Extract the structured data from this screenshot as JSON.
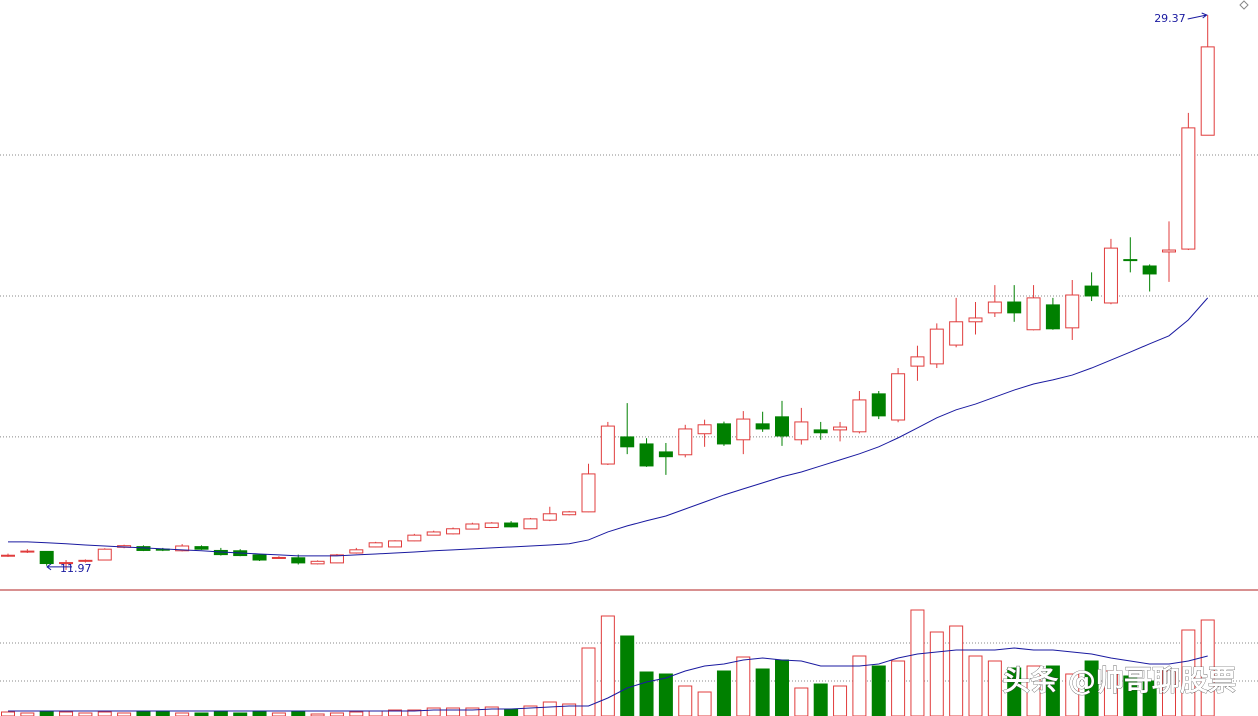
{
  "chart_data": {
    "type": "candlestick",
    "up_color": "#e03c3c",
    "down_color": "#008000",
    "ylim": [
      11.34,
      29.84
    ],
    "grid_lines": [
      16.14,
      20.56,
      24.98
    ],
    "open": [
      12.42,
      12.55,
      12.55,
      12.2,
      12.25,
      12.28,
      12.68,
      12.7,
      12.62,
      12.57,
      12.7,
      12.58,
      12.57,
      12.44,
      12.34,
      12.35,
      12.16,
      12.19,
      12.5,
      12.69,
      12.69,
      12.88,
      13.06,
      13.1,
      13.25,
      13.3,
      13.44,
      13.26,
      13.53,
      13.7,
      13.79,
      15.29,
      16.14,
      15.92,
      15.67,
      15.58,
      16.24,
      16.55,
      16.05,
      16.55,
      16.77,
      16.05,
      16.36,
      16.36,
      16.3,
      17.49,
      16.67,
      18.36,
      18.43,
      19.02,
      19.75,
      20.03,
      20.37,
      19.5,
      20.28,
      19.56,
      20.87,
      20.34,
      21.7,
      21.5,
      21.94,
      22.03,
      25.6
    ],
    "high": [
      12.48,
      12.62,
      12.56,
      12.28,
      12.3,
      12.65,
      12.76,
      12.74,
      12.66,
      12.78,
      12.74,
      12.66,
      12.62,
      12.48,
      12.4,
      12.45,
      12.27,
      12.47,
      12.66,
      12.85,
      12.9,
      13.1,
      13.2,
      13.3,
      13.45,
      13.47,
      13.5,
      13.6,
      13.95,
      13.82,
      15.3,
      16.61,
      17.2,
      16.1,
      15.95,
      16.52,
      16.68,
      16.62,
      16.95,
      16.93,
      17.27,
      17.05,
      16.61,
      16.61,
      17.58,
      17.58,
      18.3,
      19.0,
      19.7,
      20.5,
      20.37,
      20.9,
      20.9,
      20.9,
      20.5,
      21.06,
      21.3,
      22.35,
      22.4,
      21.55,
      22.9,
      26.3,
      29.37
    ],
    "low": [
      12.38,
      12.5,
      12.1,
      11.97,
      12.2,
      12.27,
      12.65,
      12.56,
      12.56,
      12.55,
      12.6,
      12.42,
      12.4,
      12.25,
      12.32,
      12.14,
      12.14,
      12.18,
      12.48,
      12.68,
      12.68,
      12.87,
      13.05,
      13.08,
      13.24,
      13.28,
      13.3,
      13.25,
      13.5,
      13.68,
      13.78,
      15.26,
      15.6,
      15.2,
      14.95,
      15.5,
      15.83,
      15.86,
      15.6,
      16.3,
      15.86,
      15.9,
      16.05,
      16.0,
      16.25,
      16.7,
      16.6,
      17.9,
      18.3,
      18.95,
      19.35,
      19.9,
      19.75,
      19.48,
      19.5,
      19.18,
      20.4,
      20.3,
      21.3,
      20.7,
      21.0,
      22.0,
      25.6
    ],
    "close": [
      12.43,
      12.56,
      12.17,
      12.2,
      12.27,
      12.62,
      12.73,
      12.58,
      12.6,
      12.72,
      12.62,
      12.45,
      12.42,
      12.28,
      12.36,
      12.19,
      12.24,
      12.44,
      12.6,
      12.82,
      12.88,
      13.06,
      13.16,
      13.26,
      13.41,
      13.44,
      13.32,
      13.57,
      13.73,
      13.79,
      14.98,
      16.48,
      15.83,
      15.23,
      15.52,
      16.39,
      16.52,
      15.92,
      16.7,
      16.39,
      16.17,
      16.61,
      16.27,
      16.45,
      17.3,
      16.8,
      18.12,
      18.65,
      19.52,
      19.75,
      19.87,
      20.37,
      20.03,
      20.5,
      19.53,
      20.59,
      20.56,
      22.06,
      21.68,
      21.25,
      22.0,
      25.83,
      28.37
    ],
    "ma": {
      "color": "#1a1aa0",
      "values": [
        12.85,
        12.85,
        12.82,
        12.79,
        12.75,
        12.72,
        12.69,
        12.66,
        12.63,
        12.6,
        12.57,
        12.53,
        12.5,
        12.47,
        12.44,
        12.41,
        12.41,
        12.41,
        12.44,
        12.47,
        12.5,
        12.53,
        12.57,
        12.6,
        12.63,
        12.66,
        12.69,
        12.72,
        12.75,
        12.79,
        12.91,
        13.16,
        13.35,
        13.51,
        13.66,
        13.88,
        14.1,
        14.32,
        14.51,
        14.7,
        14.89,
        15.04,
        15.23,
        15.42,
        15.61,
        15.83,
        16.11,
        16.42,
        16.74,
        16.99,
        17.17,
        17.39,
        17.61,
        17.8,
        17.93,
        18.08,
        18.3,
        18.55,
        18.8,
        19.06,
        19.31,
        19.81,
        20.5
      ]
    },
    "volume": {
      "ylim": [
        0,
        110
      ],
      "grid_lines": [
        35,
        73
      ],
      "values": [
        4,
        3,
        4,
        4,
        3,
        4,
        3,
        5,
        4,
        3,
        3,
        4,
        3,
        4,
        3,
        5,
        2,
        3,
        4,
        5,
        6,
        6,
        8,
        8,
        8,
        9,
        7,
        10,
        14,
        12,
        68,
        100,
        80,
        44,
        42,
        30,
        24,
        45,
        59,
        47,
        56,
        28,
        32,
        30,
        60,
        50,
        55,
        106,
        84,
        90,
        60,
        55,
        48,
        50,
        50,
        42,
        55,
        45,
        40,
        35,
        45,
        86,
        96
      ],
      "ma": [
        5,
        5,
        5,
        5,
        5,
        5,
        5,
        5,
        5,
        5,
        5,
        5,
        5,
        5,
        5,
        5,
        5,
        5,
        5,
        5,
        5,
        5,
        6,
        6,
        6,
        7,
        7,
        8,
        9,
        10,
        10,
        18,
        28,
        34,
        38,
        45,
        50,
        52,
        56,
        58,
        56,
        55,
        50,
        50,
        50,
        52,
        58,
        62,
        64,
        66,
        66,
        66,
        68,
        66,
        66,
        64,
        62,
        58,
        55,
        52,
        52,
        55,
        60
      ]
    },
    "annotations": [
      {
        "value": 29.37,
        "index": 62
      },
      {
        "value": 11.97,
        "index": 3
      }
    ],
    "watermark": "头条 @帅哥聊股票"
  }
}
